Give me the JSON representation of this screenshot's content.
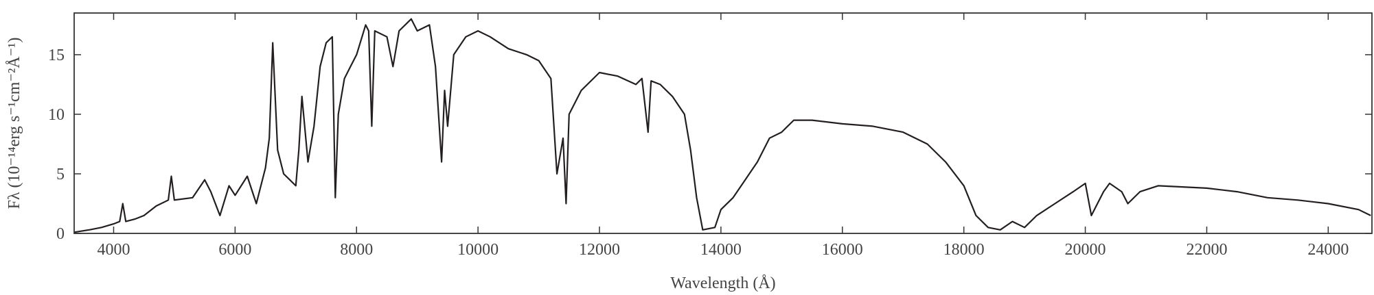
{
  "chart_data": {
    "type": "line",
    "x_label": "Wavelength (Å)",
    "y_label": "Fλ (10⁻¹⁴erg s⁻¹cm⁻²Å⁻¹)",
    "color": "#231f20",
    "grid": false,
    "xlim": [
      3350,
      24720
    ],
    "ylim": [
      0,
      18.5
    ],
    "xticks": [
      4000,
      6000,
      8000,
      10000,
      12000,
      14000,
      16000,
      18000,
      20000,
      22000,
      24000
    ],
    "yticks": [
      0,
      5,
      10,
      15
    ],
    "x": [
      3350,
      3600,
      3800,
      4000,
      4100,
      4150,
      4200,
      4350,
      4500,
      4700,
      4900,
      4950,
      5000,
      5300,
      5500,
      5600,
      5750,
      5900,
      6000,
      6200,
      6350,
      6500,
      6563,
      6620,
      6700,
      6800,
      6900,
      7000,
      7050,
      7100,
      7200,
      7300,
      7400,
      7500,
      7600,
      7650,
      7700,
      7800,
      7900,
      8000,
      8150,
      8200,
      8250,
      8300,
      8500,
      8600,
      8700,
      8900,
      9000,
      9200,
      9300,
      9400,
      9450,
      9500,
      9600,
      9800,
      10000,
      10200,
      10500,
      10800,
      11000,
      11200,
      11300,
      11400,
      11450,
      11500,
      11700,
      12000,
      12300,
      12600,
      12700,
      12800,
      12850,
      13000,
      13200,
      13400,
      13500,
      13600,
      13700,
      13900,
      14000,
      14200,
      14400,
      14600,
      14800,
      15000,
      15200,
      15500,
      16000,
      16500,
      17000,
      17400,
      17700,
      18000,
      18200,
      18400,
      18600,
      18800,
      19000,
      19200,
      19500,
      19800,
      20000,
      20100,
      20300,
      20400,
      20600,
      20700,
      20900,
      21200,
      22000,
      22500,
      23000,
      23500,
      24000,
      24500,
      24700
    ],
    "values": [
      0.1,
      0.3,
      0.5,
      0.8,
      1.0,
      2.5,
      1.0,
      1.2,
      1.5,
      2.3,
      2.8,
      4.8,
      2.8,
      3.0,
      4.5,
      3.5,
      1.5,
      4.0,
      3.2,
      4.8,
      2.5,
      5.5,
      8.0,
      16.0,
      7.0,
      5.0,
      4.5,
      4.0,
      7.0,
      11.5,
      6.0,
      9.0,
      14.0,
      16.0,
      16.5,
      3.0,
      10.0,
      13.0,
      14.0,
      15.0,
      17.5,
      17.0,
      9.0,
      17.0,
      16.5,
      14.0,
      17.0,
      18.0,
      17.0,
      17.5,
      14.0,
      6.0,
      12.0,
      9.0,
      15.0,
      16.5,
      17.0,
      16.5,
      15.5,
      15.0,
      14.5,
      13.0,
      5.0,
      8.0,
      2.5,
      10.0,
      12.0,
      13.5,
      13.2,
      12.5,
      13.0,
      8.5,
      12.8,
      12.5,
      11.5,
      10.0,
      7.0,
      3.0,
      0.3,
      0.5,
      2.0,
      3.0,
      4.5,
      6.0,
      8.0,
      8.5,
      9.5,
      9.5,
      9.2,
      9.0,
      8.5,
      7.5,
      6.0,
      4.0,
      1.5,
      0.5,
      0.3,
      1.0,
      0.5,
      1.5,
      2.5,
      3.5,
      4.2,
      1.5,
      3.5,
      4.2,
      3.5,
      2.5,
      3.5,
      4.0,
      3.8,
      3.5,
      3.0,
      2.8,
      2.5,
      2.0,
      1.5
    ]
  }
}
